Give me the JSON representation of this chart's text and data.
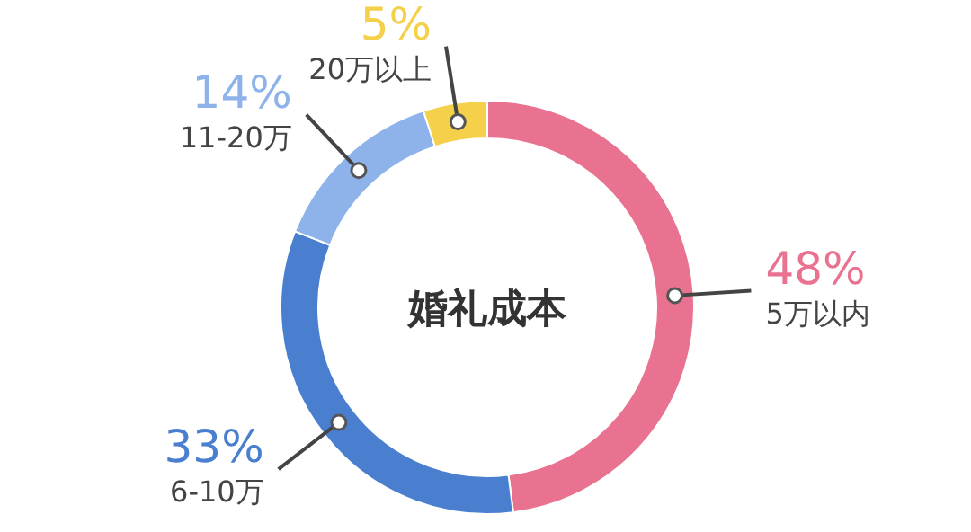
{
  "chart_data": {
    "type": "donut",
    "title": "婚礼成本",
    "categories": [
      "5万以内",
      "6-10万",
      "11-20万",
      "20万以上"
    ],
    "values": [
      48,
      33,
      14,
      5
    ],
    "colors": [
      "#e8728f",
      "#4a7fd0",
      "#8db3ea",
      "#f5d04a"
    ],
    "value_labels": [
      "48%",
      "33%",
      "14%",
      "5%"
    ],
    "legend": false
  }
}
